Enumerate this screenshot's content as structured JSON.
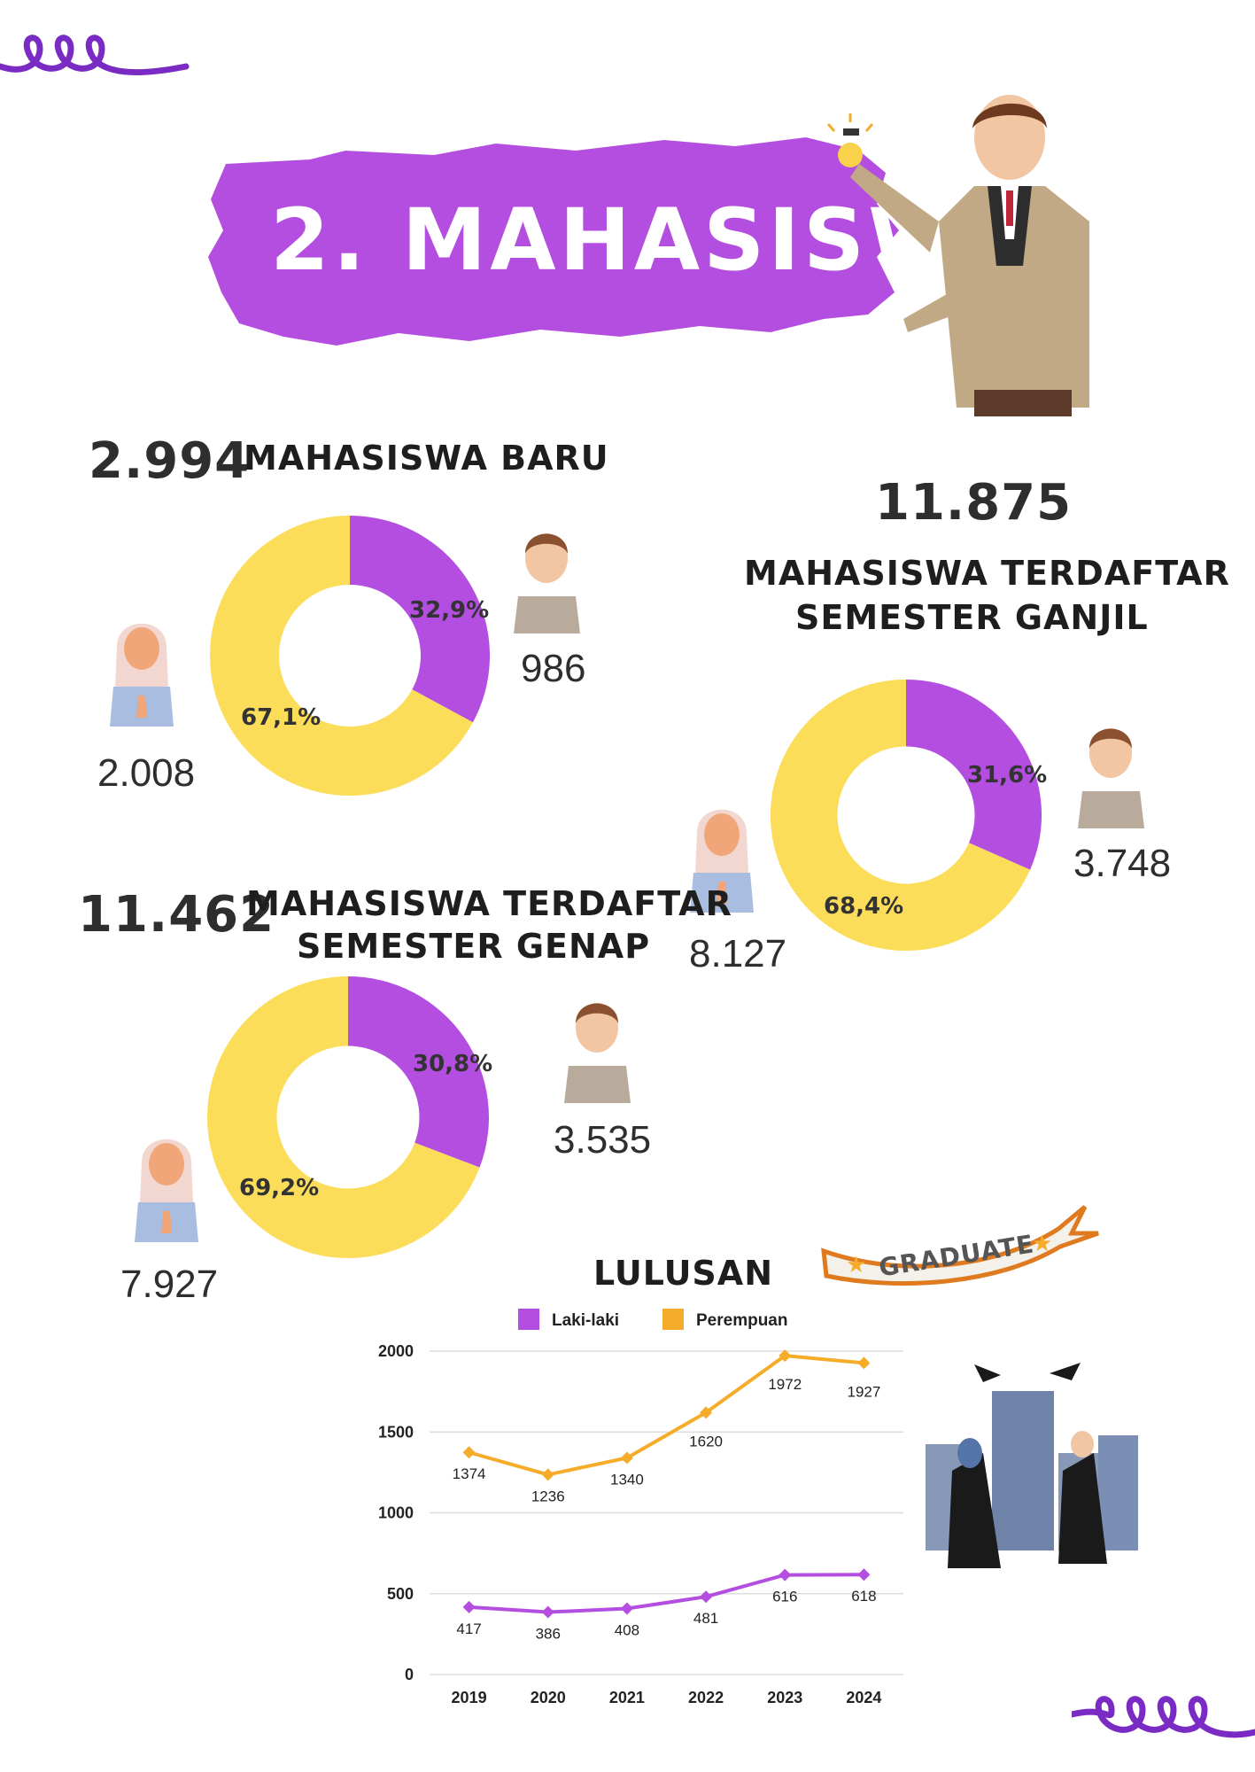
{
  "colors": {
    "purple": "#b34ee0",
    "yellow": "#fcdd5a",
    "orange": "#f5ac2b",
    "grid": "#dddddd"
  },
  "header": {
    "title": "2. MAHASISWA"
  },
  "baru": {
    "total": "2.994",
    "label": "MAHASISWA BARU",
    "female_count": "2.008",
    "male_count": "986",
    "male_pct_label": "32,9%",
    "female_pct_label": "67,1%"
  },
  "ganjil": {
    "total": "11.875",
    "label_line1": "MAHASISWA TERDAFTAR",
    "label_line2": "SEMESTER GANJIL",
    "female_count": "8.127",
    "male_count": "3.748",
    "male_pct_label": "31,6%",
    "female_pct_label": "68,4%"
  },
  "genap": {
    "total": "11.462",
    "label_line1": "MAHASISWA TERDAFTAR",
    "label_line2": "SEMESTER GENAP",
    "female_count": "7.927",
    "male_count": "3.535",
    "male_pct_label": "30,8%",
    "female_pct_label": "69,2%"
  },
  "badge": {
    "text": "GRADUATE"
  },
  "chart_data": [
    {
      "type": "pie",
      "title": "MAHASISWA BARU",
      "labels": [
        "Laki-laki",
        "Perempuan"
      ],
      "values": [
        32.9,
        67.1
      ],
      "counts": [
        986,
        2008
      ]
    },
    {
      "type": "pie",
      "title": "MAHASISWA TERDAFTAR SEMESTER GANJIL",
      "labels": [
        "Laki-laki",
        "Perempuan"
      ],
      "values": [
        31.6,
        68.4
      ],
      "counts": [
        3748,
        8127
      ]
    },
    {
      "type": "pie",
      "title": "MAHASISWA TERDAFTAR SEMESTER GENAP",
      "labels": [
        "Laki-laki",
        "Perempuan"
      ],
      "values": [
        30.8,
        69.2
      ],
      "counts": [
        3535,
        7927
      ]
    },
    {
      "type": "line",
      "title": "LULUSAN",
      "x": [
        "2019",
        "2020",
        "2021",
        "2022",
        "2023",
        "2024"
      ],
      "series": [
        {
          "name": "Laki-laki",
          "values": [
            417,
            386,
            408,
            481,
            616,
            618
          ]
        },
        {
          "name": "Perempuan",
          "values": [
            1374,
            1236,
            1340,
            1620,
            1972,
            1927
          ]
        }
      ],
      "ylim": [
        0,
        2000
      ],
      "yticks": [
        0,
        500,
        1000,
        1500,
        2000
      ],
      "legend": "top",
      "grid": true
    }
  ]
}
